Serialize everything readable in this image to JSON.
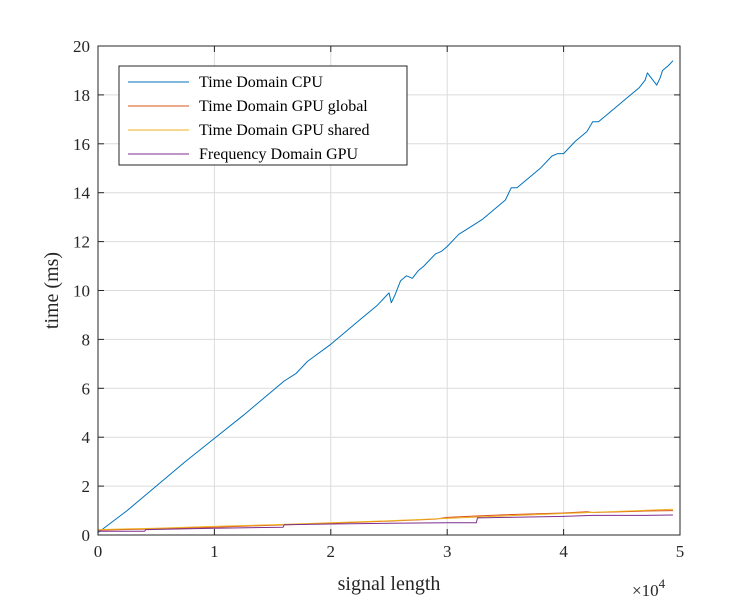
{
  "chart_data": {
    "type": "line",
    "xlabel": "signal length",
    "ylabel": "time (ms)",
    "xlim": [
      0,
      50000
    ],
    "ylim": [
      0,
      20
    ],
    "x_ticks": [
      0,
      10000,
      20000,
      30000,
      40000,
      50000
    ],
    "x_tick_labels": [
      "0",
      "1",
      "2",
      "3",
      "4",
      "5"
    ],
    "x_multiplier_base": "×10",
    "x_multiplier_exp": "4",
    "y_ticks": [
      0,
      2,
      4,
      6,
      8,
      10,
      12,
      14,
      16,
      18,
      20
    ],
    "y_tick_labels": [
      "0",
      "2",
      "4",
      "6",
      "8",
      "10",
      "12",
      "14",
      "16",
      "18",
      "20"
    ],
    "grid": true,
    "legend_position": "top-left",
    "series": [
      {
        "name": "Time Domain CPU",
        "color": "#0072BD",
        "x": [
          0,
          2500,
          5000,
          7500,
          10000,
          12500,
          15000,
          16000,
          17000,
          18000,
          20000,
          22500,
          24000,
          25000,
          25200,
          25500,
          26000,
          26500,
          27000,
          27500,
          28000,
          29000,
          29500,
          30000,
          30800,
          31000,
          32000,
          33000,
          34000,
          35000,
          35500,
          36000,
          37000,
          38000,
          39000,
          39500,
          40000,
          41000,
          42000,
          42500,
          43000,
          44000,
          45000,
          46000,
          46500,
          47000,
          47200,
          48000,
          48300,
          48500,
          49000,
          49400
        ],
        "y": [
          0.1,
          1.0,
          2.0,
          3.0,
          3.95,
          4.9,
          5.9,
          6.3,
          6.6,
          7.1,
          7.8,
          8.8,
          9.4,
          9.9,
          9.5,
          9.8,
          10.4,
          10.6,
          10.5,
          10.8,
          11.0,
          11.5,
          11.6,
          11.8,
          12.2,
          12.3,
          12.6,
          12.9,
          13.3,
          13.7,
          14.2,
          14.2,
          14.6,
          15.0,
          15.5,
          15.6,
          15.6,
          16.1,
          16.5,
          16.9,
          16.9,
          17.3,
          17.7,
          18.1,
          18.3,
          18.6,
          18.9,
          18.4,
          18.7,
          19.0,
          19.2,
          19.4
        ]
      },
      {
        "name": "Time Domain GPU global",
        "color": "#D95319",
        "x": [
          0,
          5000,
          10000,
          15000,
          20000,
          25000,
          29000,
          30000,
          32000,
          35000,
          40000,
          42000,
          42500,
          45000,
          47000,
          49400
        ],
        "y": [
          0.2,
          0.25,
          0.32,
          0.4,
          0.48,
          0.57,
          0.65,
          0.72,
          0.77,
          0.83,
          0.9,
          0.95,
          0.92,
          0.95,
          0.98,
          1.0
        ]
      },
      {
        "name": "Time Domain GPU shared",
        "color": "#EDB120",
        "x": [
          0,
          5000,
          10000,
          15000,
          20000,
          25000,
          30000,
          35000,
          40000,
          45000,
          49400
        ],
        "y": [
          0.22,
          0.28,
          0.35,
          0.42,
          0.5,
          0.58,
          0.68,
          0.78,
          0.88,
          0.97,
          1.05
        ]
      },
      {
        "name": "Frequency Domain  GPU",
        "color": "#7E2F8E",
        "x": [
          0,
          2000,
          4000,
          4100,
          10000,
          15900,
          16000,
          20000,
          25000,
          30000,
          32500,
          32600,
          35000,
          40000,
          42500,
          45000,
          47000,
          49400
        ],
        "y": [
          0.15,
          0.15,
          0.15,
          0.22,
          0.28,
          0.32,
          0.42,
          0.45,
          0.48,
          0.5,
          0.5,
          0.7,
          0.72,
          0.76,
          0.8,
          0.8,
          0.8,
          0.82
        ]
      }
    ]
  }
}
